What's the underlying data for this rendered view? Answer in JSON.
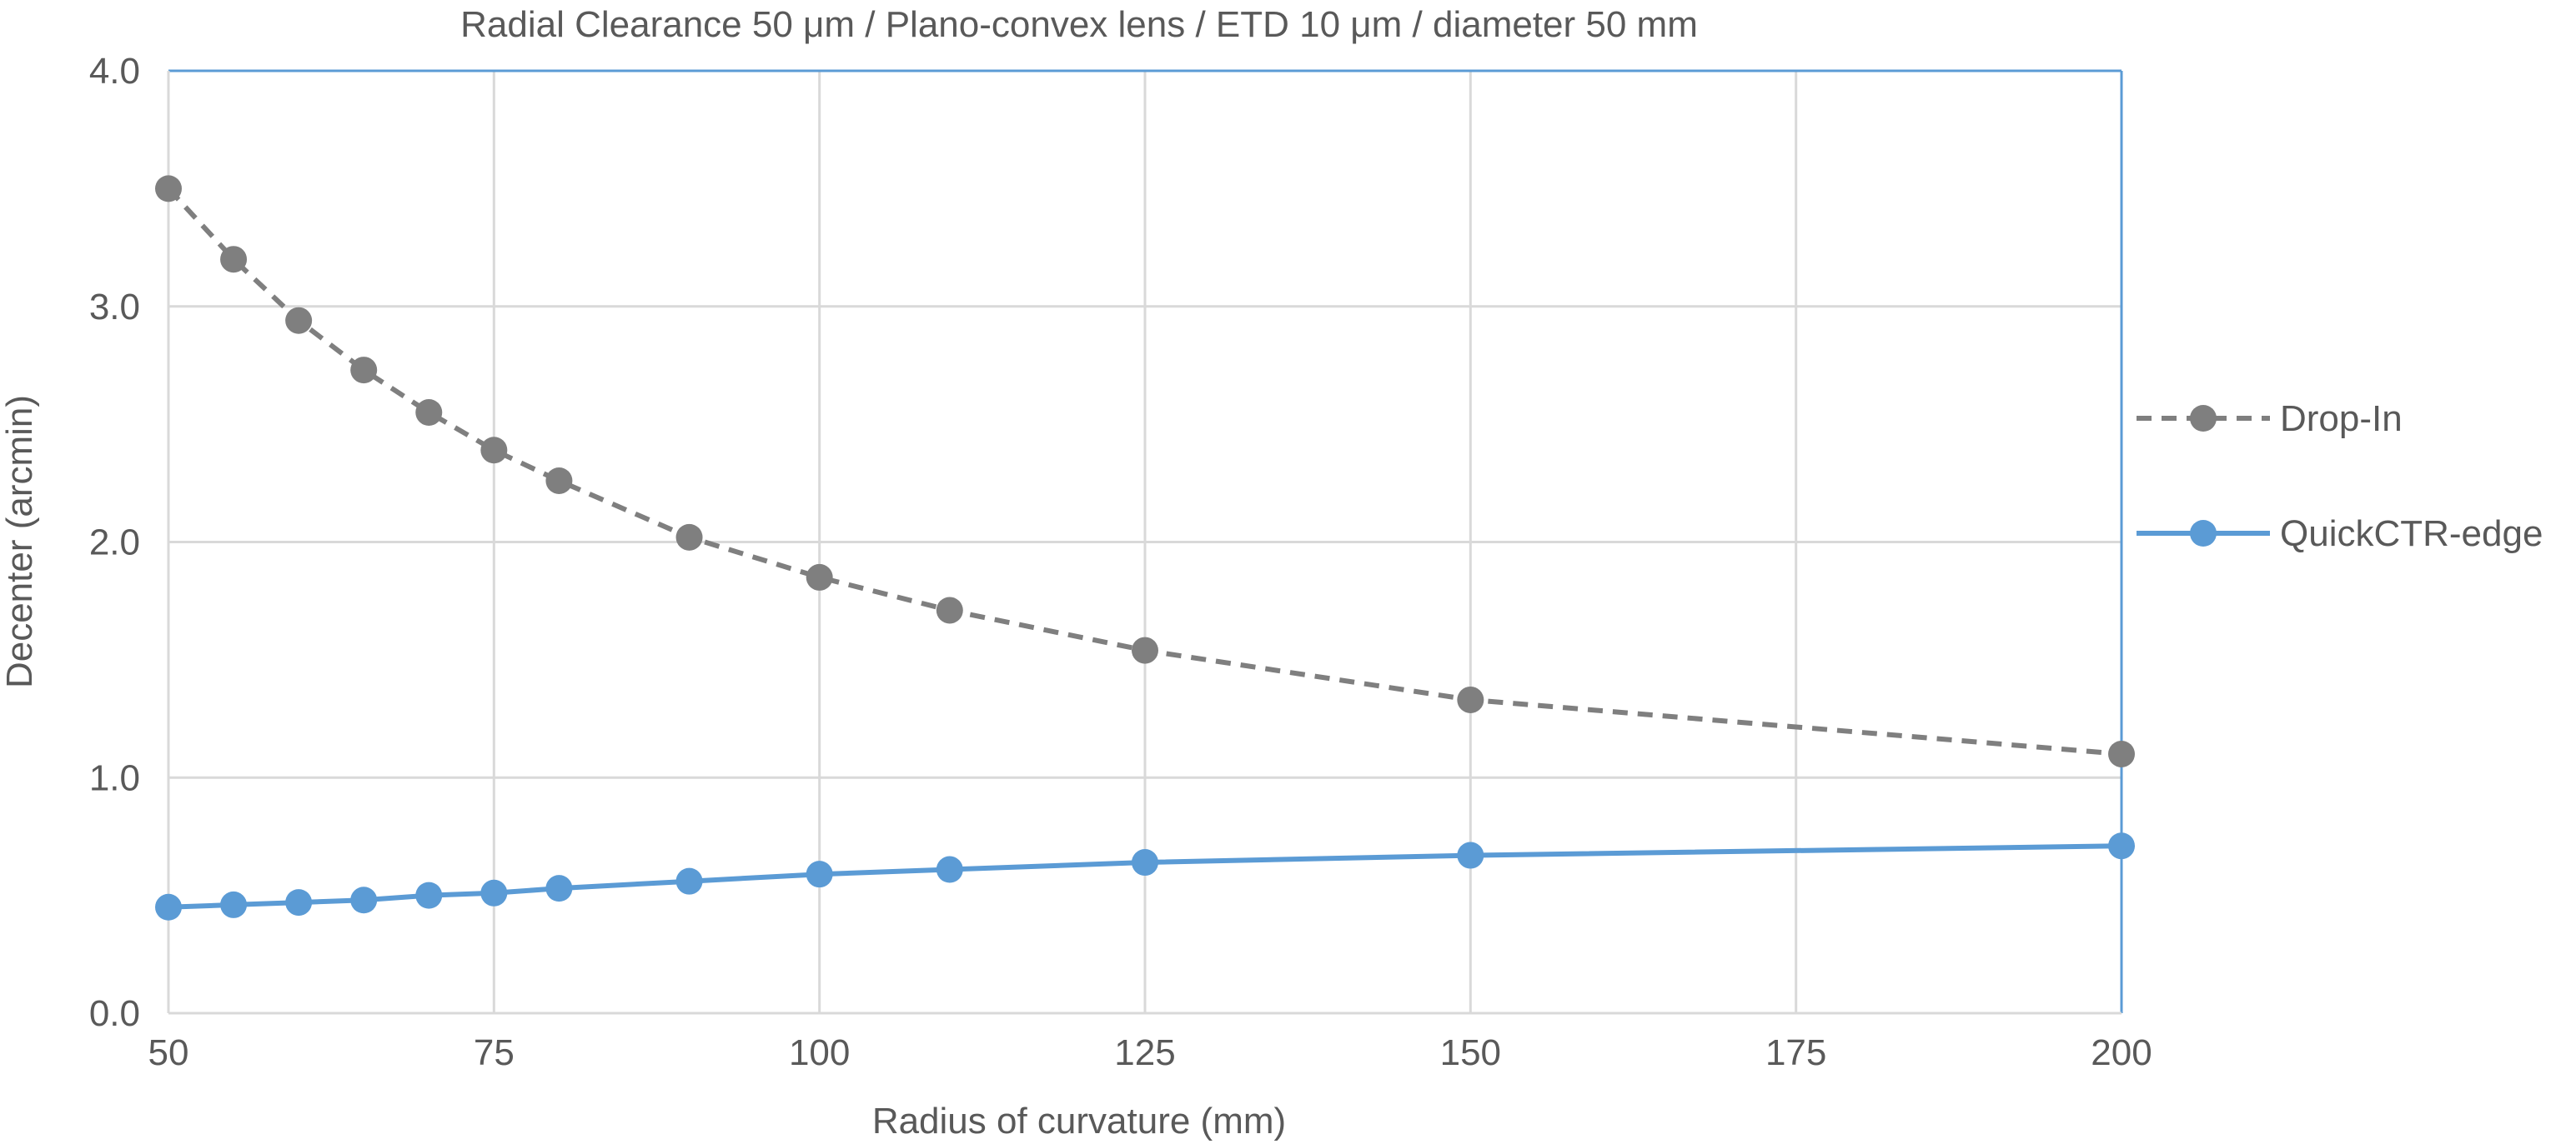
{
  "chart_data": {
    "type": "line",
    "title": "Radial Clearance 50 μm / Plano-convex lens / ETD 10 μm / diameter 50 mm",
    "xlabel": "Radius of curvature (mm)",
    "ylabel": "Decenter (arcmin)",
    "xlim": [
      50,
      200
    ],
    "ylim": [
      0,
      4
    ],
    "x_ticks": [
      50,
      75,
      100,
      125,
      150,
      175,
      200
    ],
    "x_tick_labels": [
      "50",
      "75",
      "100",
      "125",
      "150",
      "175",
      "200"
    ],
    "y_ticks": [
      0,
      1,
      2,
      3,
      4
    ],
    "y_tick_labels": [
      "0.0",
      "1.0",
      "2.0",
      "3.0",
      "4.0"
    ],
    "grid": true,
    "legend_position": "right",
    "series": [
      {
        "name": "Drop-In",
        "color": "#7f7f7f",
        "line_style": "dashed",
        "marker": "circle",
        "x": [
          50,
          55,
          60,
          65,
          70,
          75,
          80,
          90,
          100,
          110,
          125,
          150,
          200
        ],
        "y": [
          3.5,
          3.2,
          2.94,
          2.73,
          2.55,
          2.39,
          2.26,
          2.02,
          1.85,
          1.71,
          1.54,
          1.33,
          1.1
        ]
      },
      {
        "name": "QuickCTR-edge",
        "color": "#5b9bd5",
        "line_style": "solid",
        "marker": "circle",
        "x": [
          50,
          55,
          60,
          65,
          70,
          75,
          80,
          90,
          100,
          110,
          125,
          150,
          200
        ],
        "y": [
          0.45,
          0.46,
          0.47,
          0.48,
          0.5,
          0.51,
          0.53,
          0.56,
          0.59,
          0.61,
          0.64,
          0.67,
          0.71
        ]
      }
    ]
  }
}
